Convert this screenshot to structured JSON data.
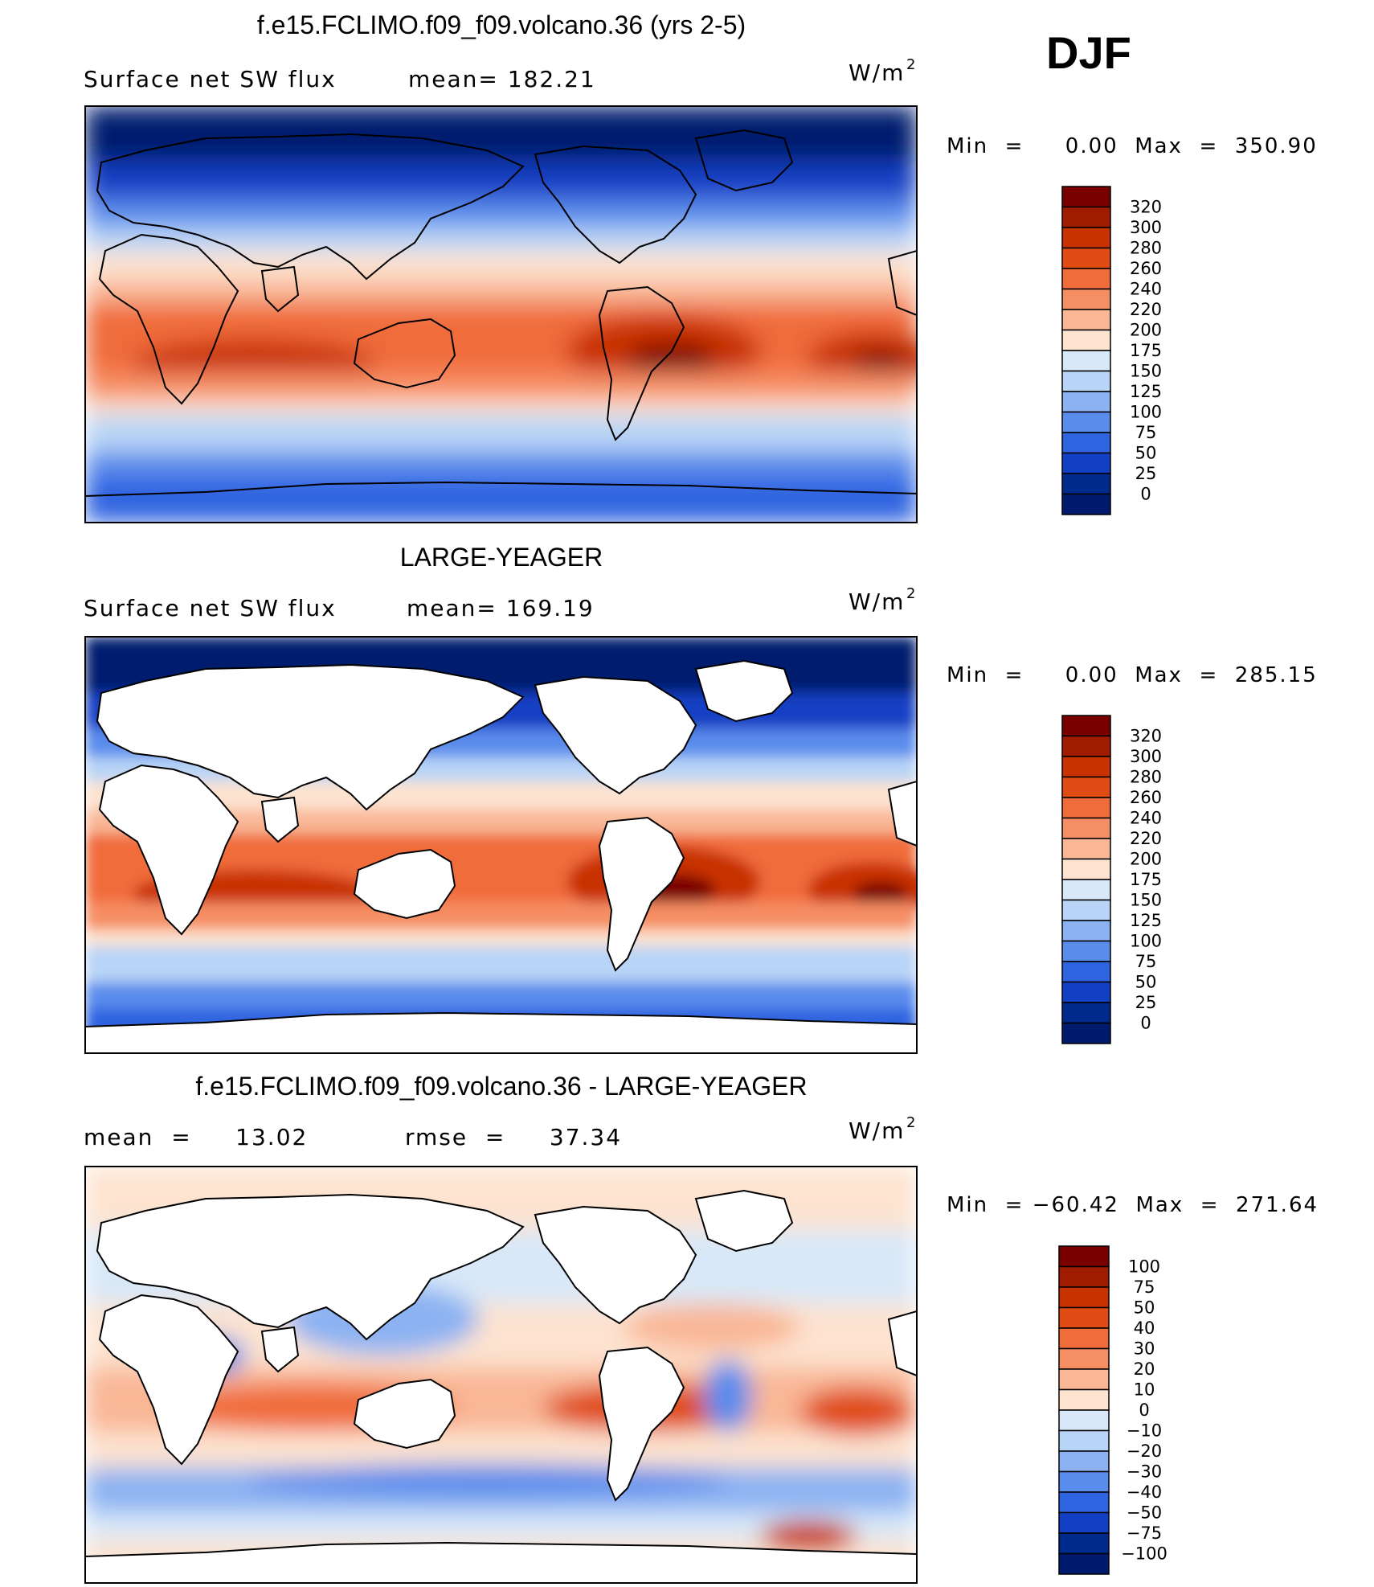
{
  "figure": {
    "season": "DJF",
    "units": "W/m",
    "units_superscript": "2"
  },
  "panels": [
    {
      "title": "f.e15.FCLIMO.f09_f09.volcano.36 (yrs 2-5)",
      "left_label": "Surface net SW flux",
      "right_label": "mean=  182.21",
      "minmax": "Min  =     0.00  Max  =  350.90",
      "colorbar_labels": [
        "320",
        "300",
        "280",
        "260",
        "240",
        "220",
        "200",
        "175",
        "150",
        "125",
        "100",
        "75",
        "50",
        "25",
        "0"
      ]
    },
    {
      "title": "LARGE-YEAGER",
      "left_label": "Surface net SW flux",
      "right_label": "mean=  169.19",
      "minmax": "Min  =     0.00  Max  =  285.15",
      "colorbar_labels": [
        "320",
        "300",
        "280",
        "260",
        "240",
        "220",
        "200",
        "175",
        "150",
        "125",
        "100",
        "75",
        "50",
        "25",
        "0"
      ]
    },
    {
      "title": "f.e15.FCLIMO.f09_f09.volcano.36 - LARGE-YEAGER",
      "left_label": "mean  =     13.02",
      "right_label": "rmse  =     37.34",
      "minmax": "Min  = −60.42  Max  =  271.64",
      "colorbar_labels": [
        "100",
        "75",
        "50",
        "40",
        "30",
        "20",
        "10",
        "0",
        "−10",
        "−20",
        "−30",
        "−40",
        "−50",
        "−75",
        "−100"
      ]
    }
  ],
  "colors": {
    "abs_scale": [
      "#7a0000",
      "#a01c00",
      "#c83200",
      "#e04c14",
      "#f06c3a",
      "#f68e64",
      "#f9b796",
      "#fde3d0",
      "#d8e8f8",
      "#b8d4f6",
      "#8cb2f2",
      "#5a8cec",
      "#2e64e0",
      "#1240c4",
      "#002a8c",
      "#001a6e"
    ],
    "diff_scale": [
      "#7a0000",
      "#a01c00",
      "#c83200",
      "#e04c14",
      "#f06c3a",
      "#f68e64",
      "#f9b796",
      "#fde3d0",
      "#d8e8f8",
      "#b8d4f6",
      "#8cb2f2",
      "#5a8cec",
      "#2e64e0",
      "#1240c4",
      "#002a8c",
      "#001a6e"
    ],
    "land_mask": "#ffffff",
    "coastline": "#000000"
  },
  "chart_data": [
    {
      "type": "heatmap",
      "title": "f.e15.FCLIMO.f09_f09.volcano.36 (yrs 2-5)",
      "variable": "Surface net SW flux",
      "units": "W/m2",
      "season": "DJF",
      "mean": 182.21,
      "min": 0.0,
      "max": 350.9,
      "levels": [
        0,
        25,
        50,
        75,
        100,
        125,
        150,
        175,
        200,
        220,
        240,
        260,
        280,
        300,
        320
      ],
      "land_masked": false
    },
    {
      "type": "heatmap",
      "title": "LARGE-YEAGER",
      "variable": "Surface net SW flux",
      "units": "W/m2",
      "season": "DJF",
      "mean": 169.19,
      "min": 0.0,
      "max": 285.15,
      "levels": [
        0,
        25,
        50,
        75,
        100,
        125,
        150,
        175,
        200,
        220,
        240,
        260,
        280,
        300,
        320
      ],
      "land_masked": true
    },
    {
      "type": "heatmap",
      "title": "f.e15.FCLIMO.f09_f09.volcano.36 - LARGE-YEAGER",
      "units": "W/m2",
      "season": "DJF",
      "mean": 13.02,
      "rmse": 37.34,
      "min": -60.42,
      "max": 271.64,
      "levels": [
        -100,
        -75,
        -50,
        -40,
        -30,
        -20,
        -10,
        0,
        10,
        20,
        30,
        40,
        50,
        75,
        100
      ],
      "land_masked": true
    }
  ]
}
